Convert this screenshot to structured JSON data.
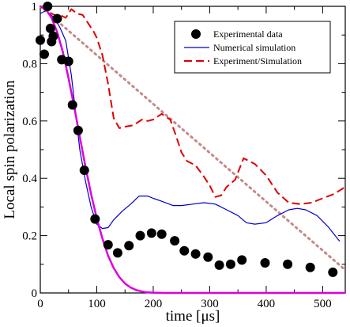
{
  "chart_data": {
    "type": "line",
    "xlabel": "time [μs]",
    "ylabel": "Local spin polarization",
    "xlim": [
      0,
      540
    ],
    "ylim": [
      0,
      1
    ],
    "x_ticks": [
      0,
      100,
      200,
      300,
      400,
      500
    ],
    "y_ticks": [
      0,
      0.2,
      0.4,
      0.6,
      0.8,
      1
    ],
    "grid": false,
    "legend_position": "top-right",
    "series": [
      {
        "name": "Experimental data",
        "kind": "scatter",
        "marker": "filled-circle",
        "color": "#000000",
        "x": [
          0,
          7,
          13,
          18,
          20,
          23,
          30,
          38,
          50,
          57,
          67,
          78,
          97,
          120,
          137,
          157,
          177,
          197,
          215,
          238,
          255,
          275,
          297,
          317,
          337,
          357,
          398,
          438,
          478,
          518
        ],
        "y": [
          0.882,
          0.833,
          1.0,
          0.923,
          0.877,
          0.896,
          0.957,
          0.814,
          0.808,
          0.656,
          0.567,
          0.428,
          0.258,
          0.168,
          0.14,
          0.165,
          0.2,
          0.209,
          0.205,
          0.182,
          0.147,
          0.136,
          0.125,
          0.097,
          0.1,
          0.115,
          0.105,
          0.1,
          0.089,
          0.072
        ]
      },
      {
        "name": "Numerical simulation",
        "kind": "line",
        "color": "#0000cc",
        "x": [
          0,
          10,
          25,
          35,
          45,
          55,
          62,
          70,
          80,
          90,
          100,
          110,
          120,
          130,
          145,
          160,
          175,
          190,
          200,
          215,
          235,
          250,
          270,
          290,
          310,
          330,
          350,
          365,
          380,
          400,
          420,
          440,
          455,
          470,
          490,
          510,
          530
        ],
        "y": [
          0.975,
          0.985,
          0.96,
          0.925,
          0.88,
          0.76,
          0.64,
          0.5,
          0.39,
          0.3,
          0.24,
          0.225,
          0.228,
          0.255,
          0.285,
          0.31,
          0.338,
          0.338,
          0.33,
          0.32,
          0.305,
          0.305,
          0.31,
          0.315,
          0.31,
          0.29,
          0.27,
          0.245,
          0.24,
          0.245,
          0.27,
          0.29,
          0.295,
          0.29,
          0.27,
          0.23,
          0.18
        ]
      },
      {
        "name": "Experiment/Simulation",
        "kind": "line",
        "dash": "dashed",
        "color": "#dd0000",
        "x": [
          0,
          15,
          25,
          35,
          45,
          55,
          65,
          75,
          85,
          95,
          100,
          110,
          120,
          130,
          140,
          150,
          165,
          180,
          190,
          200,
          215,
          230,
          240,
          250,
          260,
          275,
          290,
          300,
          310,
          320,
          330,
          345,
          360,
          380,
          400,
          420,
          440,
          460,
          480,
          500,
          520,
          540
        ],
        "y": [
          1.0,
          0.98,
          0.97,
          0.97,
          0.96,
          0.99,
          0.975,
          0.97,
          0.94,
          0.91,
          0.89,
          0.83,
          0.73,
          0.61,
          0.575,
          0.58,
          0.585,
          0.605,
          0.6,
          0.605,
          0.625,
          0.605,
          0.55,
          0.49,
          0.46,
          0.445,
          0.405,
          0.375,
          0.335,
          0.34,
          0.37,
          0.395,
          0.47,
          0.45,
          0.41,
          0.35,
          0.315,
          0.31,
          0.315,
          0.33,
          0.345,
          0.37
        ]
      },
      {
        "name": "",
        "kind": "line",
        "dash": "dotted",
        "color": "#c48a8a",
        "x": [
          0,
          540
        ],
        "y": [
          1.0,
          0.08
        ]
      },
      {
        "name": "",
        "kind": "line",
        "color": "#dd00dd",
        "x": [
          0,
          10,
          20,
          30,
          40,
          50,
          60,
          70,
          80,
          90,
          100,
          110,
          120,
          130,
          140,
          150,
          160,
          170,
          180,
          190,
          200,
          220,
          250,
          300,
          400,
          540
        ],
        "y": [
          1.0,
          0.99,
          0.96,
          0.91,
          0.84,
          0.75,
          0.65,
          0.545,
          0.44,
          0.345,
          0.26,
          0.19,
          0.13,
          0.087,
          0.055,
          0.033,
          0.019,
          0.01,
          0.005,
          0.002,
          0.001,
          0,
          0,
          0,
          0,
          0
        ]
      }
    ]
  }
}
